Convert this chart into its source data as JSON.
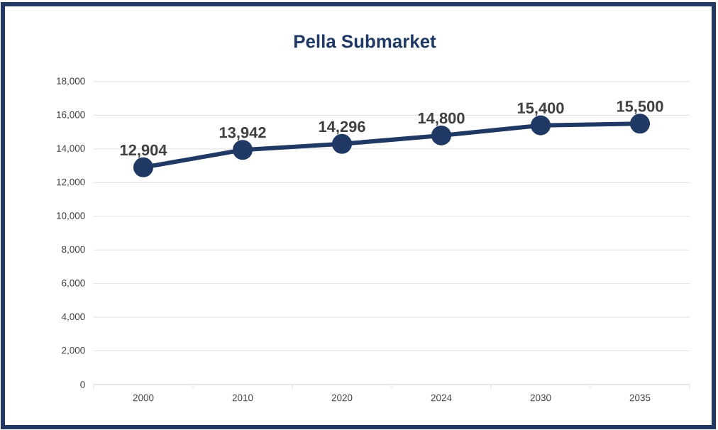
{
  "chart_data": {
    "type": "line",
    "title": "Pella Submarket",
    "categories": [
      "2000",
      "2010",
      "2020",
      "2024",
      "2030",
      "2035"
    ],
    "series": [
      {
        "color": "#1f3864",
        "values": [
          12904,
          13942,
          14296,
          14800,
          15400,
          15500
        ],
        "value_labels": [
          "12,904",
          "13,942",
          "14,296",
          "14,800",
          "15,400",
          "15,500"
        ]
      }
    ],
    "ylim": [
      0,
      18000
    ],
    "yticks": [
      0,
      {
        "value": 2000,
        "label": "2,000"
      },
      {
        "value": 4000,
        "label": "4,000"
      },
      {
        "value": 6000,
        "label": "6,000"
      },
      {
        "value": 8000,
        "label": "8,000"
      },
      {
        "value": 10000,
        "label": "10,000"
      },
      {
        "value": 12000,
        "label": "12,000"
      },
      {
        "value": 14000,
        "label": "14,000"
      },
      {
        "value": 16000,
        "label": "16,000"
      },
      {
        "value": 18000,
        "label": "18,000"
      }
    ],
    "grid": "y",
    "marker": "circle",
    "line_style": "solid"
  }
}
